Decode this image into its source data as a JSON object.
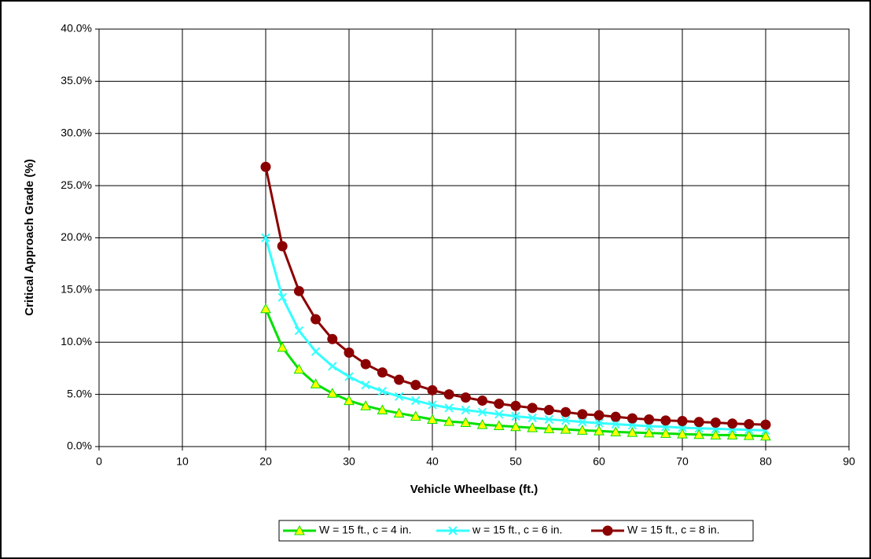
{
  "chart_data": {
    "type": "line",
    "xlabel": "Vehicle Wheelbase (ft.)",
    "ylabel": "Critical Approach Grade (%)",
    "x": [
      20,
      22,
      24,
      26,
      28,
      30,
      32,
      34,
      36,
      38,
      40,
      42,
      44,
      46,
      48,
      50,
      52,
      54,
      56,
      58,
      60,
      62,
      64,
      66,
      68,
      70,
      72,
      74,
      76,
      78,
      80
    ],
    "series": [
      {
        "name": "W = 15 ft., c = 4 in.",
        "color": "#00e000",
        "marker": "triangle",
        "marker_fill": "#ffff00",
        "values": [
          13.2,
          9.5,
          7.4,
          6.0,
          5.1,
          4.4,
          3.9,
          3.5,
          3.2,
          2.9,
          2.6,
          2.4,
          2.3,
          2.1,
          2.0,
          1.9,
          1.8,
          1.7,
          1.65,
          1.55,
          1.5,
          1.4,
          1.35,
          1.3,
          1.25,
          1.2,
          1.15,
          1.1,
          1.1,
          1.05,
          1.0
        ]
      },
      {
        "name": "w = 15 ft., c = 6 in.",
        "color": "#33ffff",
        "marker": "x",
        "marker_fill": "#33ffff",
        "values": [
          20.0,
          14.3,
          11.1,
          9.1,
          7.7,
          6.7,
          5.9,
          5.3,
          4.8,
          4.4,
          4.0,
          3.7,
          3.5,
          3.3,
          3.1,
          2.9,
          2.75,
          2.6,
          2.5,
          2.35,
          2.25,
          2.15,
          2.05,
          1.95,
          1.9,
          1.8,
          1.75,
          1.7,
          1.65,
          1.6,
          1.55
        ]
      },
      {
        "name": "W = 15 ft., c = 8 in.",
        "color": "#8b0000",
        "marker": "circle",
        "marker_fill": "#8b0000",
        "values": [
          26.8,
          19.2,
          14.9,
          12.2,
          10.3,
          9.0,
          7.9,
          7.1,
          6.4,
          5.9,
          5.4,
          5.0,
          4.7,
          4.4,
          4.1,
          3.9,
          3.7,
          3.5,
          3.3,
          3.1,
          3.0,
          2.85,
          2.7,
          2.6,
          2.5,
          2.45,
          2.35,
          2.3,
          2.2,
          2.15,
          2.1
        ]
      }
    ],
    "xlim": [
      0,
      90
    ],
    "xticks": [
      0,
      10,
      20,
      30,
      40,
      50,
      60,
      70,
      80,
      90
    ],
    "ylim": [
      0,
      40
    ],
    "yticks": [
      {
        "value": 0,
        "label": "0.0%"
      },
      {
        "value": 5,
        "label": "5.0%"
      },
      {
        "value": 10,
        "label": "10.0%"
      },
      {
        "value": 15,
        "label": "15.0%"
      },
      {
        "value": 20,
        "label": "20.0%"
      },
      {
        "value": 25,
        "label": "25.0%"
      },
      {
        "value": 30,
        "label": "30.0%"
      },
      {
        "value": 35,
        "label": "35.0%"
      },
      {
        "value": 40,
        "label": "40.0%"
      }
    ],
    "grid": true,
    "legend": "bottom"
  }
}
